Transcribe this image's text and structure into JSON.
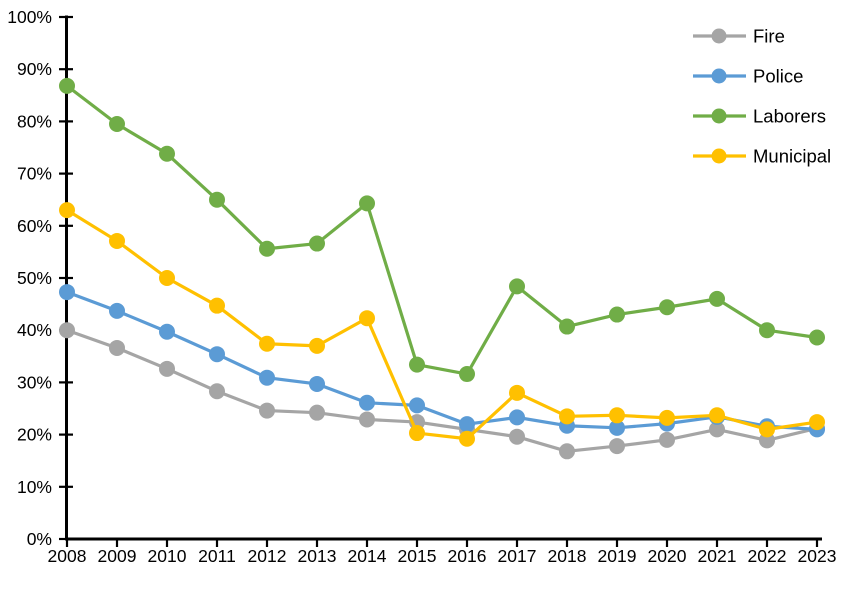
{
  "chart_data": {
    "type": "line",
    "title": "",
    "xlabel": "",
    "ylabel": "",
    "x": [
      2008,
      2009,
      2010,
      2011,
      2012,
      2013,
      2014,
      2015,
      2016,
      2017,
      2018,
      2019,
      2020,
      2021,
      2022,
      2023
    ],
    "ylim": [
      0,
      100
    ],
    "ytick_step": 10,
    "ytick_suffix": "%",
    "grid": false,
    "legend_position": "top-right",
    "axis_color": "#000000",
    "background_color": "#ffffff",
    "series": [
      {
        "name": "Fire",
        "color": "#A5A5A5",
        "values": [
          40.0,
          36.6,
          32.6,
          28.3,
          24.6,
          24.2,
          22.9,
          22.4,
          21.0,
          19.6,
          16.8,
          17.8,
          19.0,
          21.0,
          18.9,
          21.2
        ]
      },
      {
        "name": "Police",
        "color": "#5B9BD5",
        "values": [
          47.3,
          43.7,
          39.7,
          35.4,
          30.9,
          29.7,
          26.1,
          25.6,
          22.0,
          23.3,
          21.7,
          21.3,
          22.1,
          23.4,
          21.6,
          21.0
        ]
      },
      {
        "name": "Laborers",
        "color": "#70AD47",
        "values": [
          86.8,
          79.5,
          73.8,
          65.0,
          55.6,
          56.6,
          64.3,
          33.4,
          31.6,
          48.4,
          40.7,
          43.0,
          44.4,
          46.0,
          40.0,
          38.6
        ]
      },
      {
        "name": "Municipal",
        "color": "#FFC000",
        "values": [
          63.0,
          57.1,
          50.0,
          44.7,
          37.4,
          37.0,
          42.3,
          20.3,
          19.2,
          28.0,
          23.5,
          23.7,
          23.2,
          23.7,
          21.0,
          22.4
        ]
      }
    ],
    "legend_labels": [
      "Fire",
      "Police",
      "Laborers",
      "Municipal"
    ]
  }
}
